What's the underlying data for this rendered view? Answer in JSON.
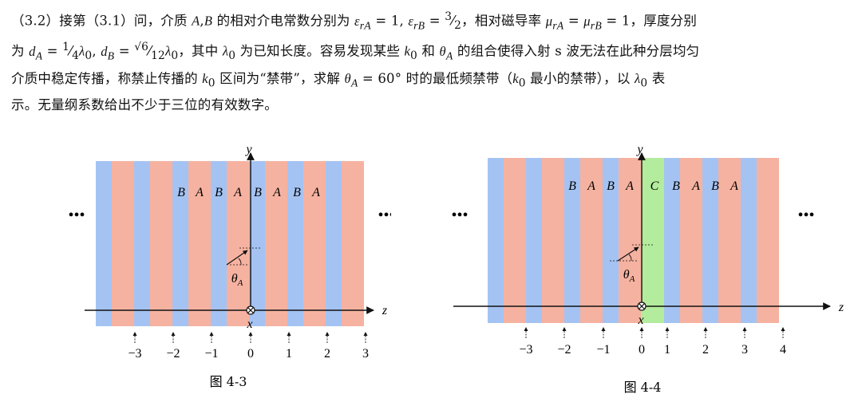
{
  "problem": {
    "line1": "（3.2）接第（3.1）问，介质 A,B 的相对介电常数分别为 ε_rA = 1, ε_rB = 3/2，相对磁导率 μ_rA = μ_rB = 1，厚度分别",
    "line2": "为 d_A = (1/4)λ₀, d_B = (√6/12)λ₀，其中 λ₀ 为已知长度。容易发现某些 k₀ 和 θ_A 的组合使得入射 s 波无法在此种分层均匀",
    "line3": "介质中稳定传播，称禁止传播的 k₀ 区间为“禁带”，求解 θ_A = 60° 时的最低频禁带（k₀ 最小的禁带），以 λ₀ 表",
    "line4": "示。无量纲系数给出不少于三位的有效数字。"
  },
  "colors": {
    "layer_A": "#f6b2a0",
    "layer_B": "#a4c3f3",
    "layer_C": "#b3ec9c"
  },
  "fig43": {
    "caption": "图 4-3",
    "y_label": "y",
    "z_label": "z",
    "x_label": "x",
    "angle_label": "θ_A",
    "ellipsis": "•••",
    "layer_labels": [
      "B",
      "A",
      "B",
      "A",
      "B",
      "A",
      "B",
      "A"
    ],
    "ticks": [
      "−3",
      "−2",
      "−1",
      "0",
      "1",
      "2",
      "3"
    ]
  },
  "fig44": {
    "caption": "图 4-4",
    "y_label": "y",
    "z_label": "z",
    "x_label": "x",
    "angle_label": "θ_A",
    "ellipsis": "•••",
    "layer_labels": [
      "B",
      "A",
      "B",
      "A",
      "C",
      "B",
      "A",
      "B",
      "A"
    ],
    "ticks": [
      "−3",
      "−2",
      "−1",
      "0",
      "1",
      "2",
      "3",
      "4"
    ]
  }
}
